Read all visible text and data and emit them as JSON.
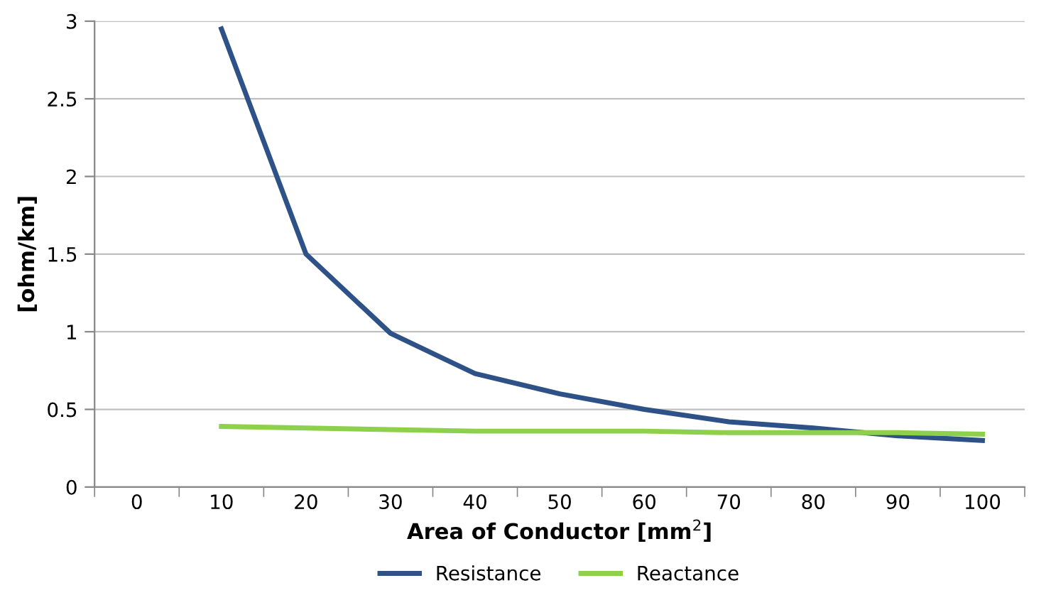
{
  "chart_data": {
    "type": "line",
    "xlabel": "Area of Conductor [mm$^{2}$]",
    "ylabel": "[ohm/km]",
    "categories": [
      "0",
      "10",
      "20",
      "30",
      "40",
      "50",
      "60",
      "70",
      "80",
      "90",
      "100"
    ],
    "series": [
      {
        "name": "Resistance",
        "color": "#2e5287",
        "values": [
          null,
          2.95,
          1.5,
          0.99,
          0.73,
          0.6,
          0.5,
          0.42,
          0.38,
          0.33,
          0.3
        ]
      },
      {
        "name": "Reactance",
        "color": "#8cd04c",
        "values": [
          null,
          0.39,
          0.38,
          0.37,
          0.36,
          0.36,
          0.36,
          0.35,
          0.35,
          0.35,
          0.34
        ]
      }
    ],
    "ylim": [
      0,
      3
    ],
    "yticks": [
      0,
      0.5,
      1,
      1.5,
      2,
      2.5,
      3
    ],
    "grid": "y",
    "legend": "bottom",
    "marker": "none",
    "line_style": "solid"
  }
}
